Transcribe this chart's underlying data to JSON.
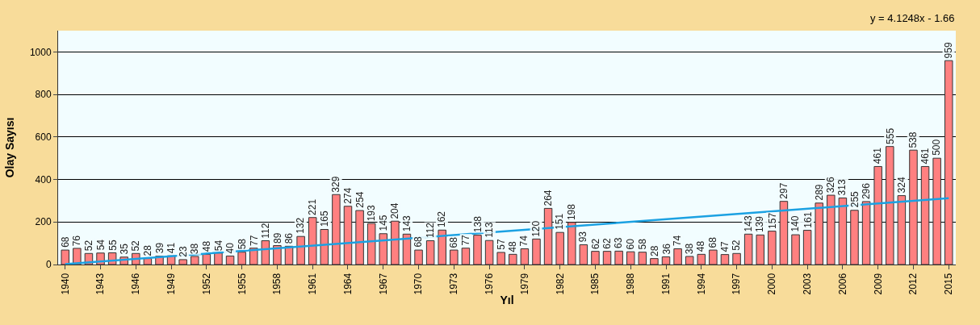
{
  "chart_data": {
    "type": "bar",
    "xlabel": "Yıl",
    "ylabel": "Olay Sayısı",
    "categories": [
      "1940",
      null,
      null,
      "1943",
      null,
      null,
      "1946",
      null,
      null,
      "1949",
      null,
      null,
      "1952",
      null,
      null,
      "1955",
      null,
      null,
      "1958",
      null,
      null,
      "1961",
      null,
      null,
      "1964",
      null,
      null,
      "1967",
      null,
      null,
      "1970",
      null,
      null,
      "1973",
      null,
      null,
      "1976",
      null,
      null,
      "1979",
      null,
      null,
      "1982",
      null,
      null,
      "1985",
      null,
      null,
      "1988",
      null,
      null,
      "1991",
      null,
      null,
      "1994",
      null,
      null,
      "1997",
      null,
      null,
      "2000",
      null,
      null,
      "2003",
      null,
      null,
      "2006",
      null,
      null,
      "2009",
      null,
      null,
      "2012",
      null,
      null,
      "2015"
    ],
    "series": [
      {
        "color": "#ff8080",
        "data_labels": true,
        "values": [
          68,
          76,
          52,
          54,
          55,
          35,
          52,
          28,
          39,
          41,
          23,
          38,
          48,
          54,
          40,
          58,
          77,
          112,
          89,
          86,
          132,
          221,
          165,
          329,
          274,
          254,
          193,
          145,
          204,
          143,
          68,
          112,
          162,
          68,
          77,
          138,
          113,
          57,
          48,
          74,
          120,
          264,
          151,
          198,
          93,
          62,
          62,
          63,
          60,
          58,
          28,
          36,
          74,
          38,
          48,
          68,
          47,
          52,
          143,
          139,
          157,
          297,
          140,
          161,
          289,
          326,
          313,
          255,
          296,
          461,
          555,
          324,
          538,
          461,
          500,
          959
        ]
      },
      {
        "type": "line",
        "color": "#1ba1e2",
        "values": [
          2,
          null,
          null,
          null,
          null,
          null,
          null,
          null,
          null,
          null,
          null,
          null,
          null,
          null,
          null,
          null,
          null,
          null,
          null,
          null,
          null,
          null,
          null,
          null,
          null,
          null,
          null,
          null,
          null,
          null,
          null,
          null,
          null,
          null,
          null,
          null,
          null,
          null,
          null,
          null,
          null,
          null,
          null,
          null,
          null,
          null,
          null,
          null,
          null,
          null,
          null,
          null,
          null,
          null,
          null,
          null,
          null,
          null,
          null,
          null,
          null,
          null,
          null,
          null,
          null,
          null,
          null,
          null,
          null,
          null,
          null,
          null,
          null,
          null,
          null,
          312
        ]
      }
    ],
    "annotations": [
      "y = 4.1248x - 1.66"
    ],
    "ylim": [
      0,
      1100
    ],
    "yticks": [
      0,
      200,
      400,
      600,
      800,
      1000
    ],
    "grid": "y"
  }
}
